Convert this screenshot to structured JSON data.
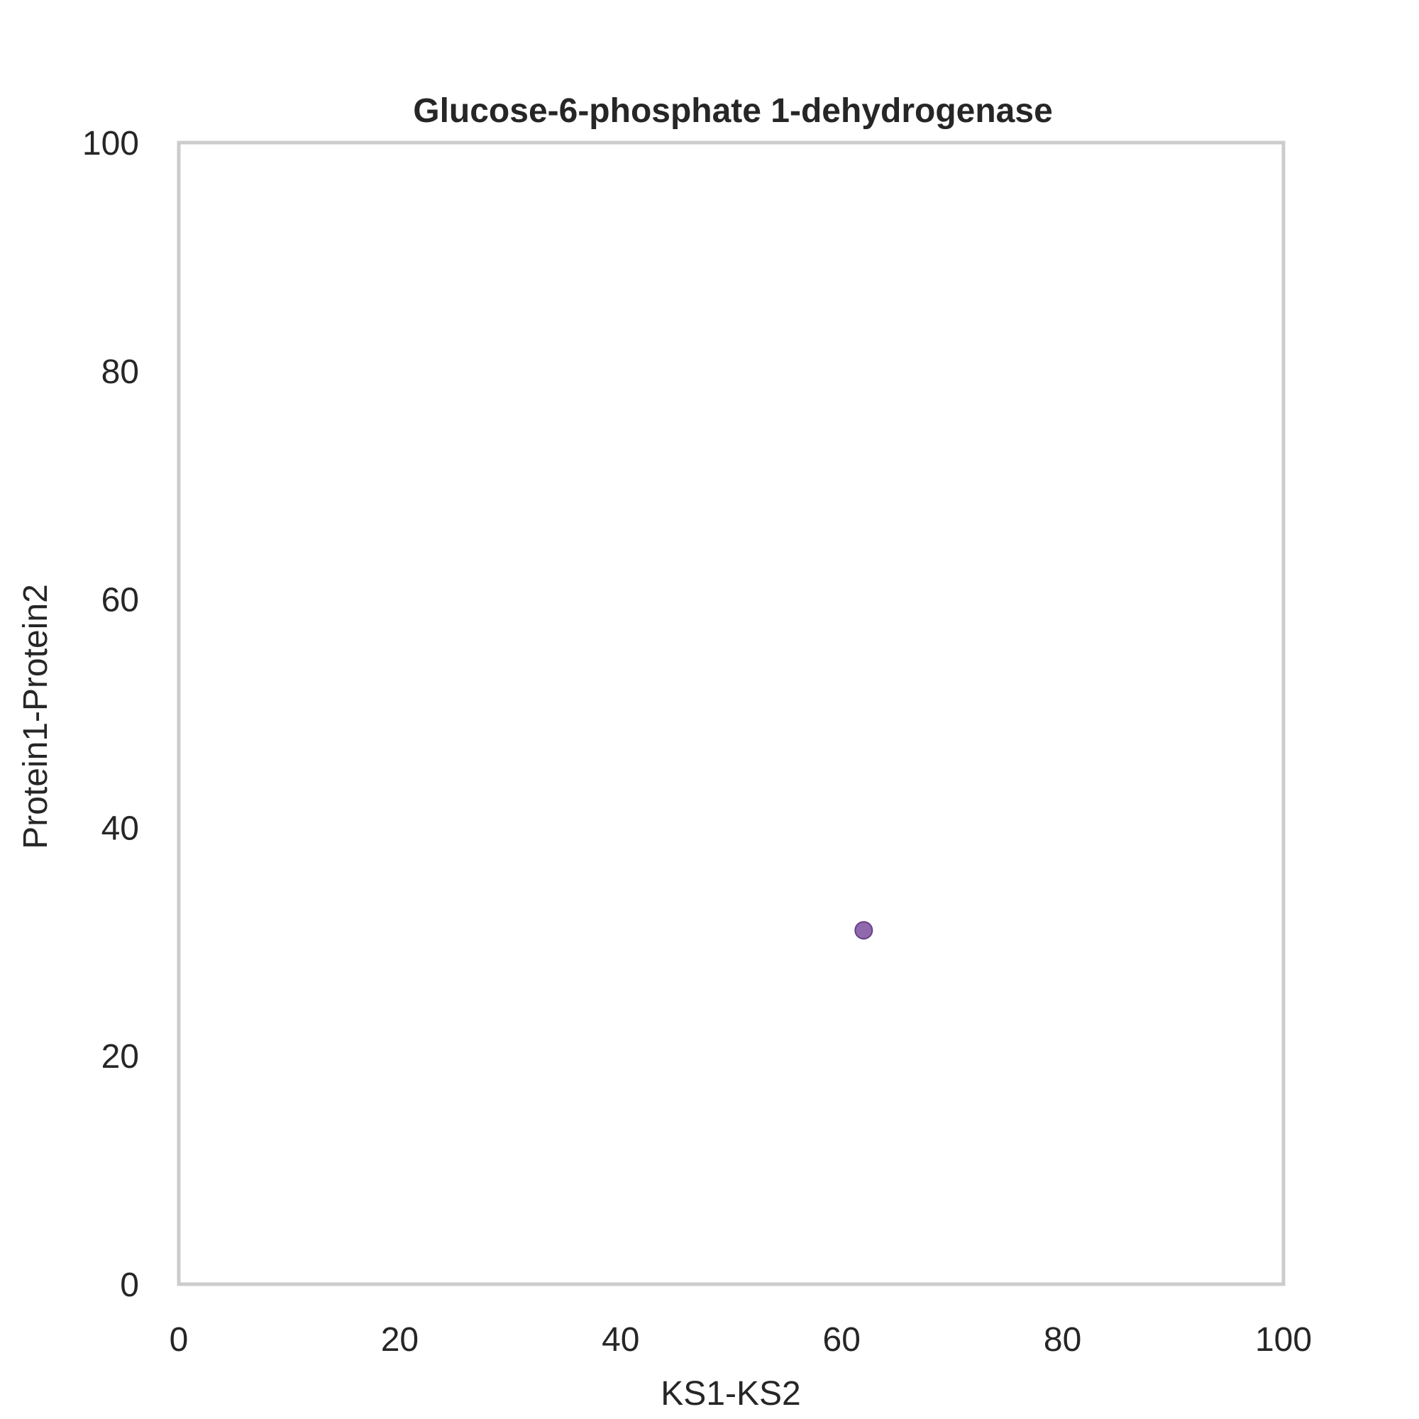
{
  "chart_data": {
    "type": "scatter",
    "title": "Glucose-6-phosphate 1-dehydrogenase",
    "xlabel": "KS1-KS2",
    "ylabel": "Protein1-Protein2",
    "xlim": [
      0,
      100
    ],
    "ylim": [
      0,
      100
    ],
    "xticks": [
      "0",
      "20",
      "40",
      "60",
      "80",
      "100"
    ],
    "yticks": [
      "0",
      "20",
      "40",
      "60",
      "80",
      "100"
    ],
    "grid": false,
    "legend": "none",
    "marker_color": "#7b4f9e",
    "points": [
      {
        "x": 62,
        "y": 31
      }
    ]
  }
}
